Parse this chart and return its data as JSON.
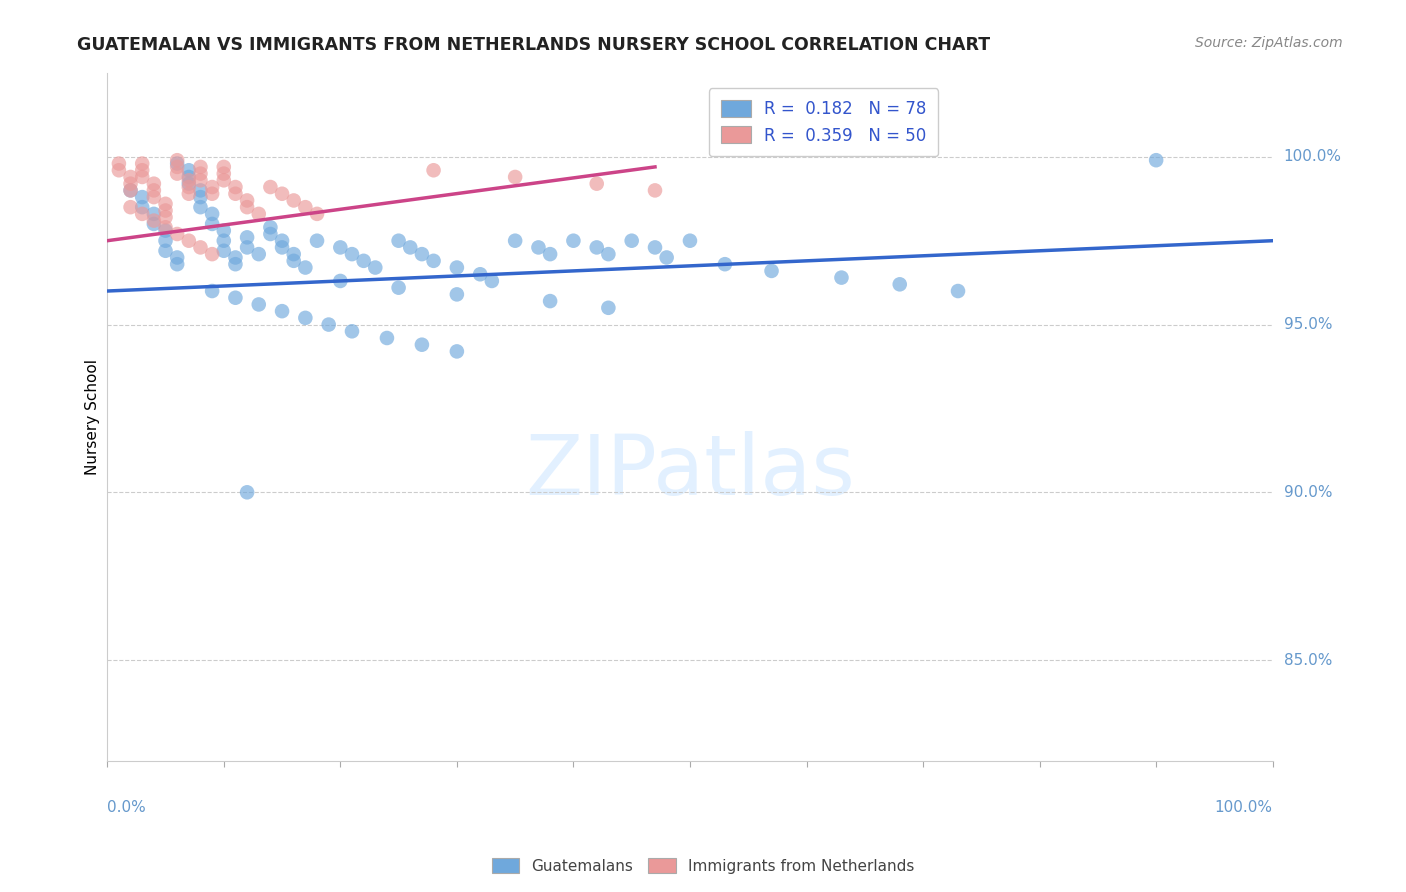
{
  "title": "GUATEMALAN VS IMMIGRANTS FROM NETHERLANDS NURSERY SCHOOL CORRELATION CHART",
  "source": "Source: ZipAtlas.com",
  "ylabel": "Nursery School",
  "blue_color": "#6fa8dc",
  "pink_color": "#ea9999",
  "line_blue": "#3366cc",
  "line_pink": "#cc4488",
  "watermark_color": "#ddeeff",
  "grid_color": "#cccccc",
  "right_label_color": "#6699cc",
  "title_color": "#222222",
  "source_color": "#888888",
  "ytick_values": [
    0.85,
    0.9,
    0.95,
    1.0
  ],
  "ytick_labels": [
    "85.0%",
    "90.0%",
    "95.0%",
    "100.0%"
  ],
  "xrange": [
    0.0,
    1.0
  ],
  "yrange": [
    0.82,
    1.025
  ],
  "blue_line_x": [
    0.0,
    1.0
  ],
  "blue_line_y": [
    0.96,
    0.975
  ],
  "pink_line_x": [
    0.0,
    0.47
  ],
  "pink_line_y": [
    0.975,
    0.997
  ],
  "blue_x": [
    0.02,
    0.03,
    0.03,
    0.04,
    0.04,
    0.05,
    0.05,
    0.05,
    0.06,
    0.06,
    0.06,
    0.07,
    0.07,
    0.07,
    0.08,
    0.08,
    0.08,
    0.09,
    0.09,
    0.1,
    0.1,
    0.1,
    0.11,
    0.11,
    0.12,
    0.12,
    0.13,
    0.14,
    0.14,
    0.15,
    0.15,
    0.16,
    0.16,
    0.17,
    0.18,
    0.2,
    0.21,
    0.22,
    0.23,
    0.25,
    0.26,
    0.27,
    0.28,
    0.3,
    0.32,
    0.33,
    0.35,
    0.37,
    0.38,
    0.4,
    0.42,
    0.43,
    0.45,
    0.47,
    0.5,
    0.09,
    0.11,
    0.13,
    0.15,
    0.17,
    0.19,
    0.21,
    0.24,
    0.27,
    0.3,
    0.2,
    0.25,
    0.3,
    0.38,
    0.43,
    0.48,
    0.53,
    0.57,
    0.63,
    0.68,
    0.73,
    0.9,
    0.12
  ],
  "blue_y": [
    0.99,
    0.988,
    0.985,
    0.983,
    0.98,
    0.978,
    0.975,
    0.972,
    0.97,
    0.968,
    0.998,
    0.996,
    0.994,
    0.992,
    0.99,
    0.988,
    0.985,
    0.983,
    0.98,
    0.978,
    0.975,
    0.972,
    0.97,
    0.968,
    0.976,
    0.973,
    0.971,
    0.979,
    0.977,
    0.975,
    0.973,
    0.971,
    0.969,
    0.967,
    0.975,
    0.973,
    0.971,
    0.969,
    0.967,
    0.975,
    0.973,
    0.971,
    0.969,
    0.967,
    0.965,
    0.963,
    0.975,
    0.973,
    0.971,
    0.975,
    0.973,
    0.971,
    0.975,
    0.973,
    0.975,
    0.96,
    0.958,
    0.956,
    0.954,
    0.952,
    0.95,
    0.948,
    0.946,
    0.944,
    0.942,
    0.963,
    0.961,
    0.959,
    0.957,
    0.955,
    0.97,
    0.968,
    0.966,
    0.964,
    0.962,
    0.96,
    0.999,
    0.9
  ],
  "pink_x": [
    0.01,
    0.01,
    0.02,
    0.02,
    0.02,
    0.03,
    0.03,
    0.03,
    0.04,
    0.04,
    0.04,
    0.05,
    0.05,
    0.05,
    0.06,
    0.06,
    0.06,
    0.07,
    0.07,
    0.07,
    0.08,
    0.08,
    0.08,
    0.09,
    0.09,
    0.1,
    0.1,
    0.1,
    0.11,
    0.11,
    0.12,
    0.12,
    0.13,
    0.14,
    0.15,
    0.16,
    0.17,
    0.18,
    0.02,
    0.03,
    0.04,
    0.05,
    0.06,
    0.07,
    0.08,
    0.09,
    0.28,
    0.35,
    0.42,
    0.47
  ],
  "pink_y": [
    0.998,
    0.996,
    0.994,
    0.992,
    0.99,
    0.998,
    0.996,
    0.994,
    0.992,
    0.99,
    0.988,
    0.986,
    0.984,
    0.982,
    0.999,
    0.997,
    0.995,
    0.993,
    0.991,
    0.989,
    0.997,
    0.995,
    0.993,
    0.991,
    0.989,
    0.997,
    0.995,
    0.993,
    0.991,
    0.989,
    0.987,
    0.985,
    0.983,
    0.991,
    0.989,
    0.987,
    0.985,
    0.983,
    0.985,
    0.983,
    0.981,
    0.979,
    0.977,
    0.975,
    0.973,
    0.971,
    0.996,
    0.994,
    0.992,
    0.99
  ]
}
